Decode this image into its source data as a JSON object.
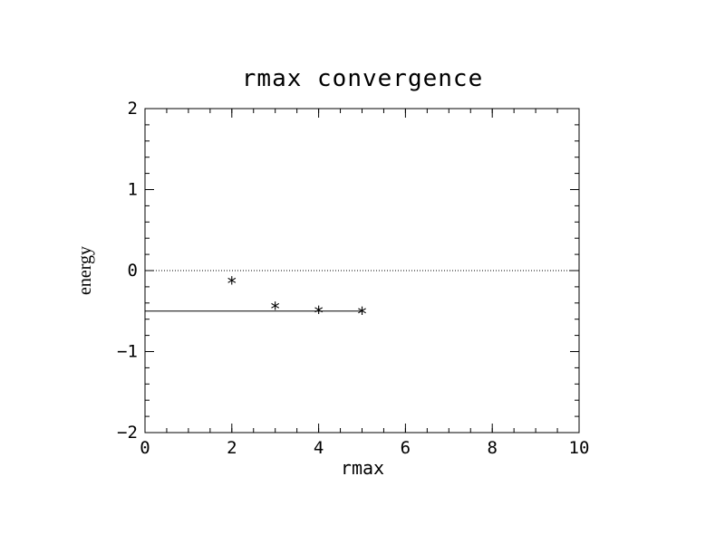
{
  "chart_data": {
    "type": "scatter",
    "title": "rmax convergence",
    "xlabel": "rmax",
    "ylabel": "energy",
    "xlim": [
      0,
      10
    ],
    "ylim": [
      -2,
      2
    ],
    "x_ticks": [
      0,
      2,
      4,
      6,
      8,
      10
    ],
    "y_ticks": [
      -2,
      -1,
      0,
      1,
      2
    ],
    "x_tick_labels": [
      "0",
      "2",
      "4",
      "6",
      "8",
      "10"
    ],
    "y_tick_labels": [
      "−2",
      "−1",
      "0",
      "1",
      "2"
    ],
    "grid": false,
    "marker": "*",
    "series": [
      {
        "x": [
          2,
          3,
          4,
          5
        ],
        "y": [
          -0.13,
          -0.44,
          -0.49,
          -0.5
        ]
      }
    ],
    "reference_lines": [
      {
        "type": "horizontal",
        "y": 0,
        "style": "dotted",
        "x_range": [
          0,
          10
        ]
      },
      {
        "type": "horizontal",
        "y": -0.5,
        "style": "solid",
        "x_range": [
          0,
          5
        ]
      }
    ],
    "colors": {
      "ink": "#000000",
      "background": "#ffffff"
    }
  }
}
